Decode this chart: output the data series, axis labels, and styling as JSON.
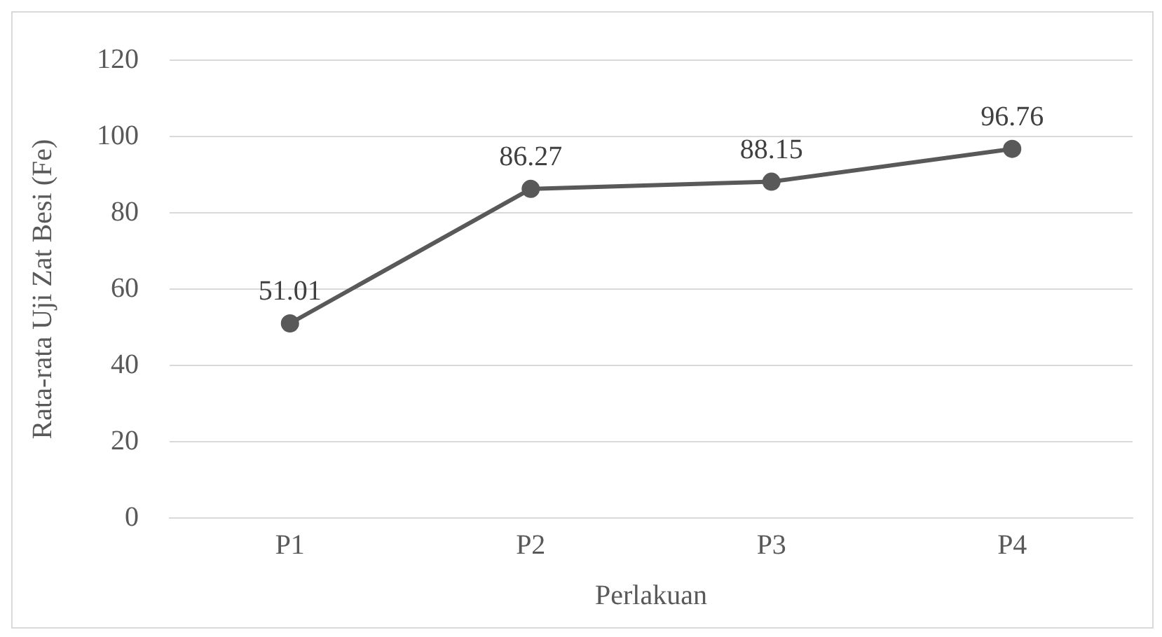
{
  "chart_data": {
    "type": "line",
    "xlabel": "Perlakuan",
    "ylabel": "Rata-rata Uji Zat Besi (Fe)",
    "categories": [
      "P1",
      "P2",
      "P3",
      "P4"
    ],
    "series": [
      {
        "color": "#595959",
        "values": [
          51.01,
          86.27,
          88.15,
          96.76
        ]
      }
    ],
    "ylim": [
      0,
      120
    ],
    "yticks": [
      0,
      20,
      40,
      60,
      80,
      100,
      120
    ],
    "grid": "y",
    "legend": false,
    "marker": "circle",
    "line_style": "solid",
    "data_labels": true
  }
}
